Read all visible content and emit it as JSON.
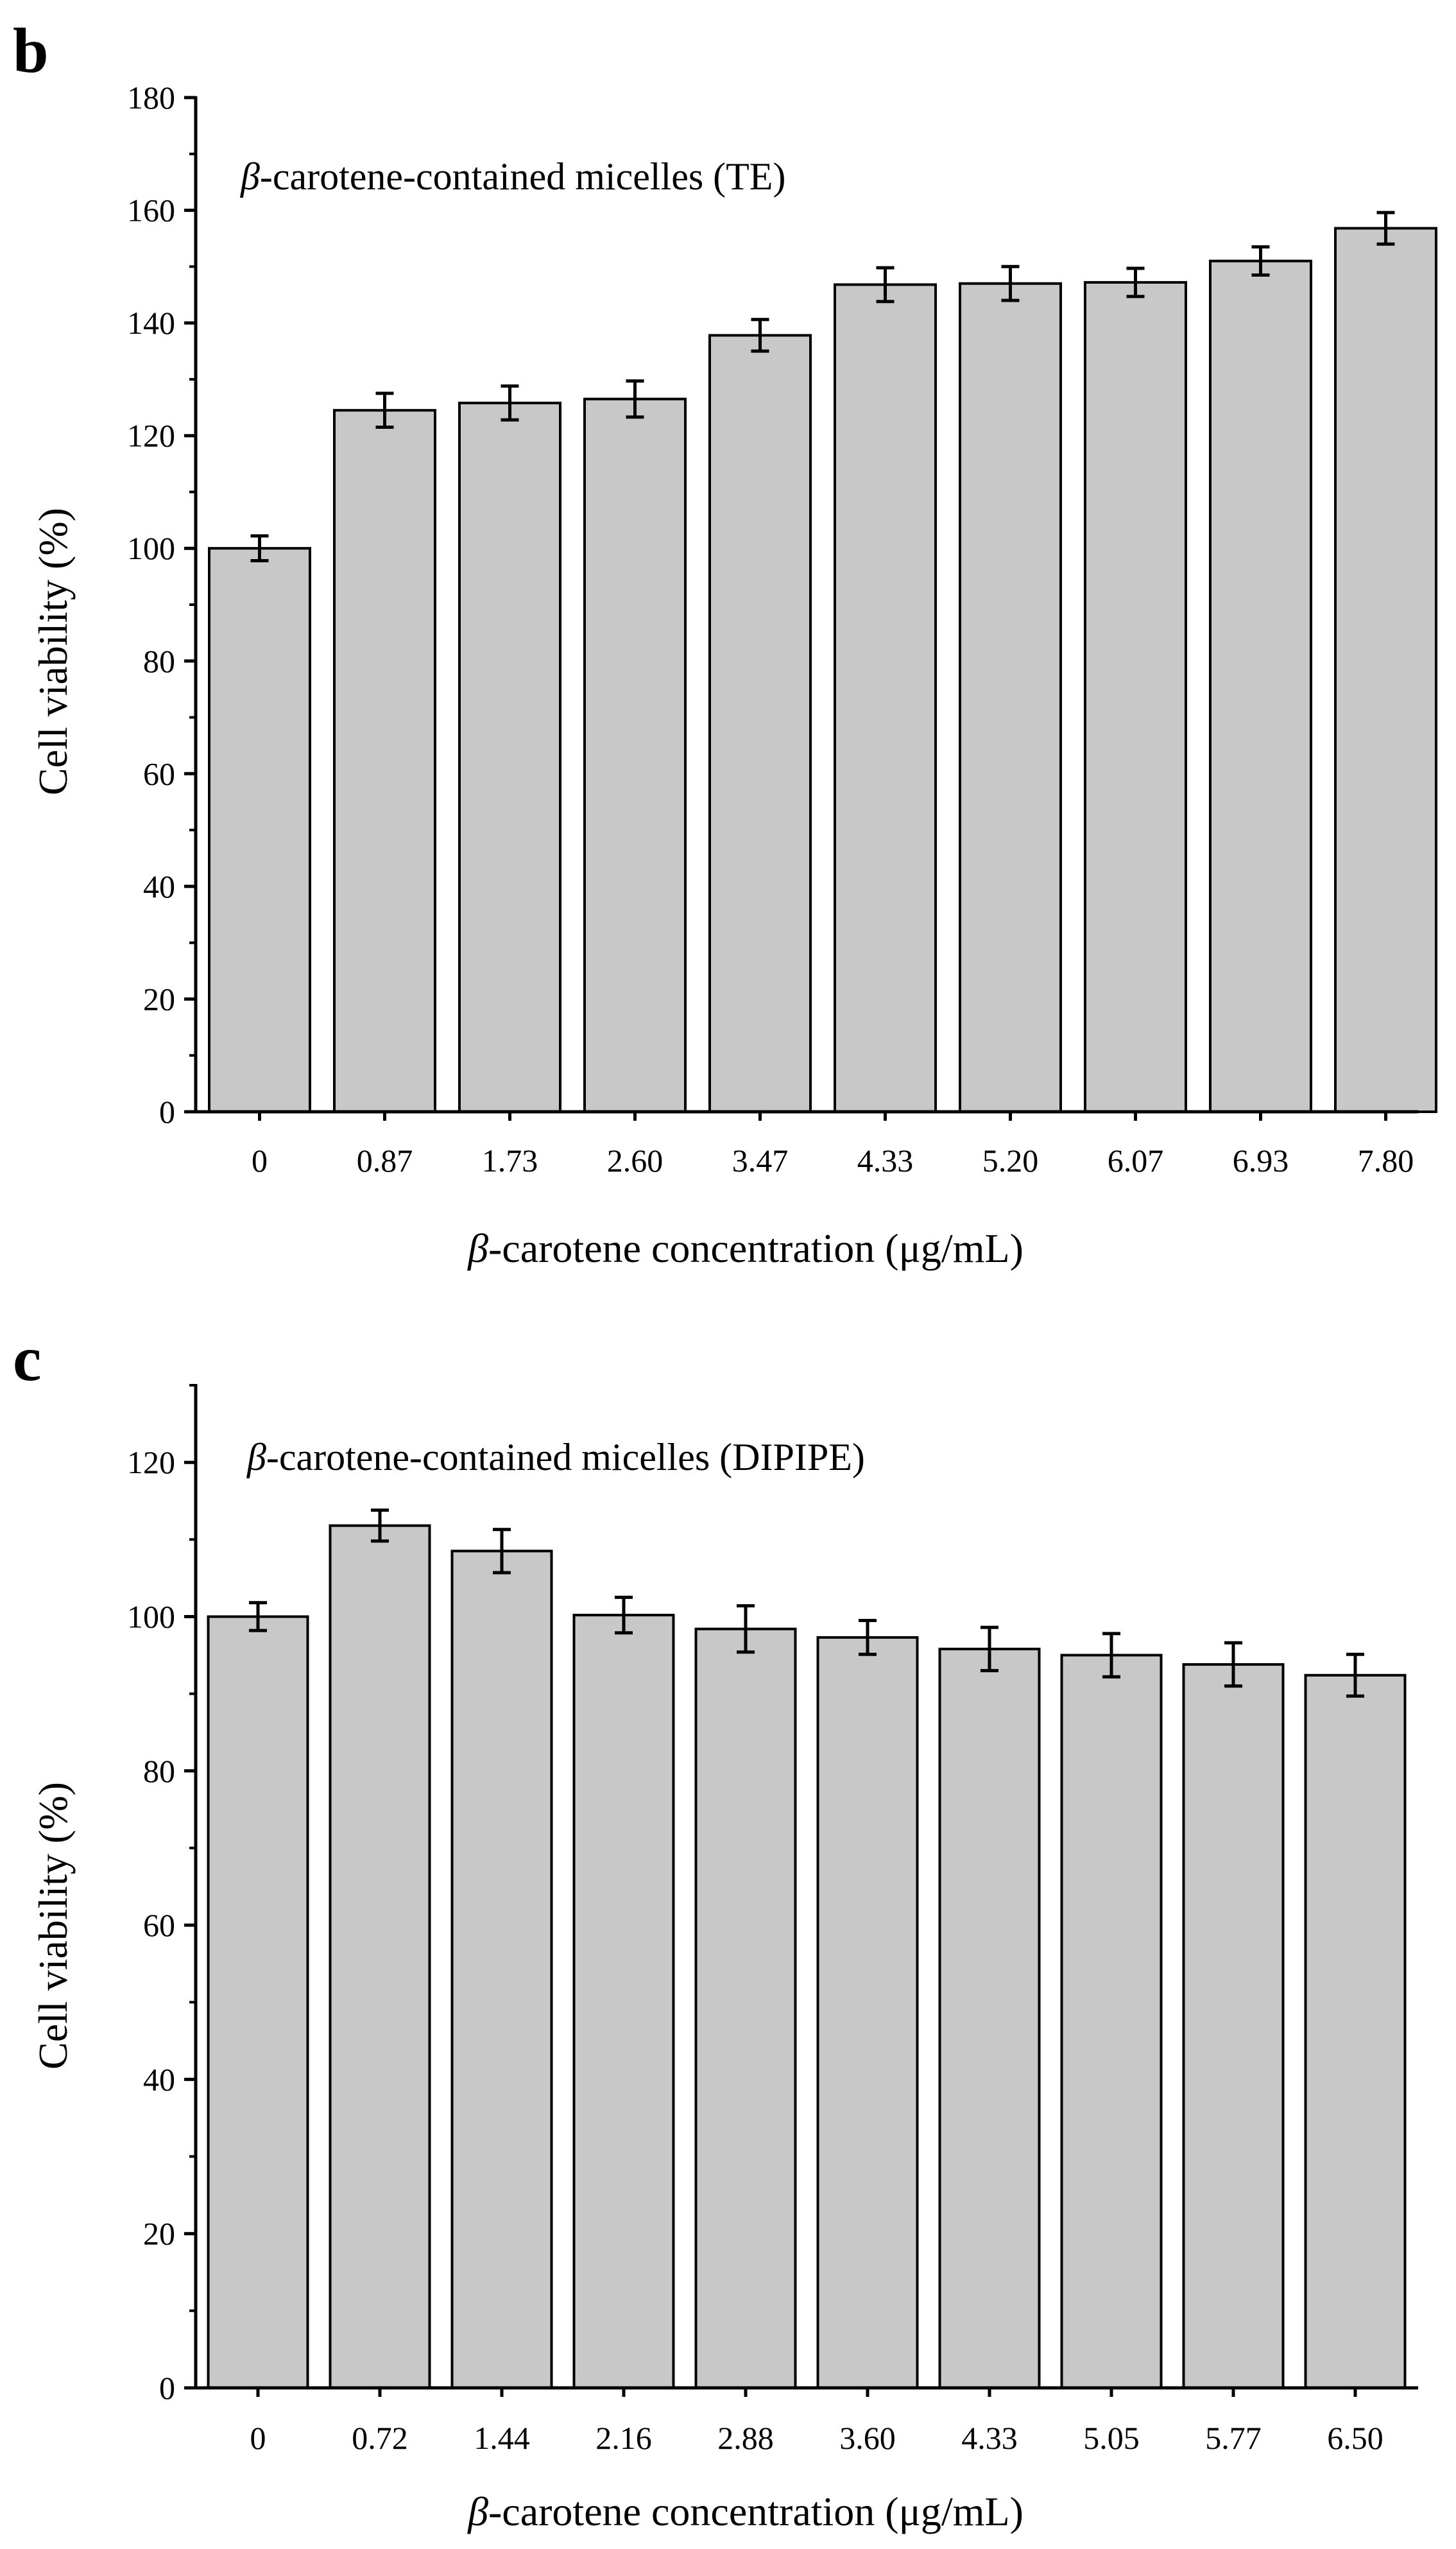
{
  "chart_data": [
    {
      "panel": "b",
      "type": "bar",
      "title_prefix": "β",
      "title": "-carotene-contained micelles (TE)",
      "xlabel_prefix": "β",
      "xlabel": "-carotene concentration (μg/mL)",
      "ylabel": "Cell viability (%)",
      "ylim": [
        0,
        180
      ],
      "yticks": [
        0,
        20,
        40,
        60,
        80,
        100,
        120,
        140,
        160,
        180
      ],
      "categories": [
        "0",
        "0.87",
        "1.73",
        "2.60",
        "3.47",
        "4.33",
        "5.20",
        "6.07",
        "6.93",
        "7.80"
      ],
      "values": [
        100,
        124.5,
        125.8,
        126.5,
        137.8,
        146.8,
        147,
        147.2,
        151,
        156.8
      ],
      "errors": [
        2.2,
        3,
        3,
        3.2,
        2.8,
        3,
        3,
        2.5,
        2.5,
        2.8
      ],
      "colors": {
        "bar_fill": "#c8c8c8",
        "bar_stroke": "#000000"
      }
    },
    {
      "panel": "c",
      "type": "bar",
      "title_prefix": "β",
      "title": "-carotene-contained micelles (DIPIPE)",
      "xlabel_prefix": "β",
      "xlabel": "-carotene concentration (μg/mL)",
      "ylabel": "Cell viability (%)",
      "ylim": [
        0,
        130
      ],
      "yticks": [
        0,
        20,
        40,
        60,
        80,
        100,
        120
      ],
      "categories": [
        "0",
        "0.72",
        "1.44",
        "2.16",
        "2.88",
        "3.60",
        "4.33",
        "5.05",
        "5.77",
        "6.50"
      ],
      "values": [
        100,
        111.8,
        108.5,
        100.2,
        98.4,
        97.3,
        95.8,
        95,
        93.8,
        92.4
      ],
      "errors": [
        1.8,
        2,
        2.8,
        2.3,
        3,
        2.2,
        2.8,
        2.8,
        2.8,
        2.7
      ],
      "colors": {
        "bar_fill": "#c8c8c8",
        "bar_stroke": "#000000"
      }
    }
  ]
}
